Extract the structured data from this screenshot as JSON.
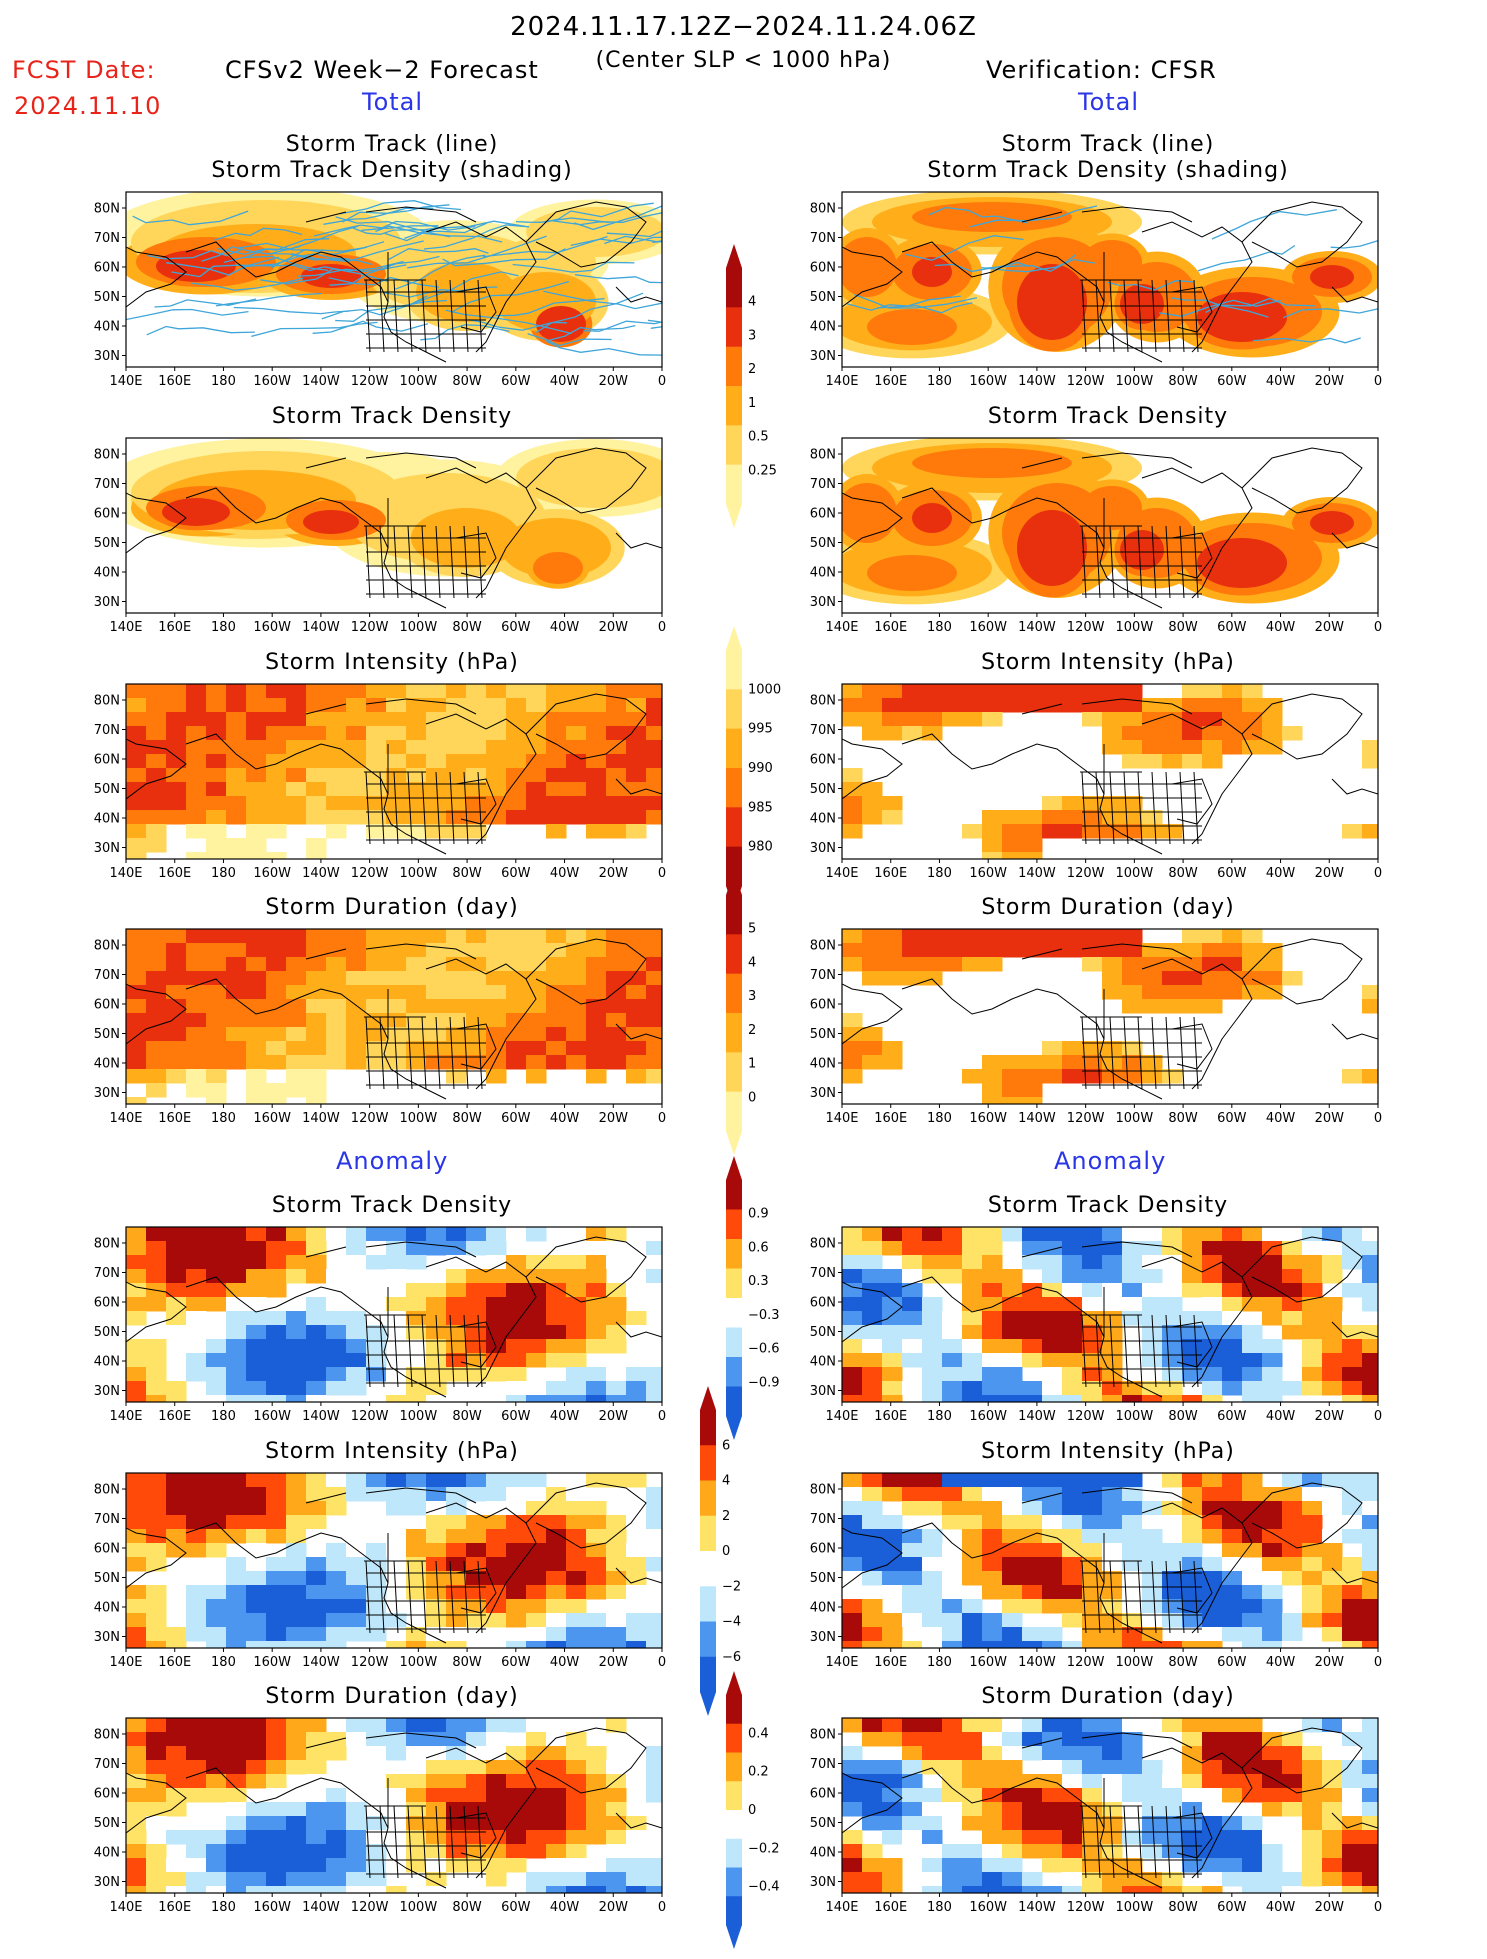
{
  "header": {
    "title": "2024.11.17.12Z−2024.11.24.06Z",
    "subtitle": "(Center SLP < 1000 hPa)",
    "fcst_label": "FCST Date:",
    "fcst_date": "2024.11.10",
    "left_model": "CFSv2 Week−2 Forecast",
    "right_model": "Verification: CFSR"
  },
  "sections": {
    "total_left": "Total",
    "total_right": "Total",
    "anomaly_left": "Anomaly",
    "anomaly_right": "Anomaly"
  },
  "panels": {
    "track_line": "Storm Track (line)",
    "track_shading": "Storm Track Density (shading)",
    "track_density": "Storm Track Density",
    "intensity": "Storm Intensity (hPa)",
    "duration": "Storm Duration (day)"
  },
  "axes": {
    "lon_ticks": [
      "140E",
      "160E",
      "180",
      "160W",
      "140W",
      "120W",
      "100W",
      "80W",
      "60W",
      "40W",
      "20W",
      "0"
    ],
    "lat_ticks": [
      "80N",
      "70N",
      "60N",
      "50N",
      "40N",
      "30N"
    ]
  },
  "colorbars": [
    {
      "id": "density-total",
      "labels": [
        "4",
        "3",
        "2",
        "1",
        "0.5",
        "0.25"
      ]
    },
    {
      "id": "intensity-total",
      "labels": [
        "1000",
        "995",
        "990",
        "985",
        "980"
      ]
    },
    {
      "id": "duration-total",
      "labels": [
        "5",
        "4",
        "3",
        "2",
        "1",
        "0"
      ]
    },
    {
      "id": "density-anom",
      "labels": [
        "0.9",
        "0.6",
        "0.3",
        "−0.3",
        "−0.6",
        "−0.9"
      ]
    },
    {
      "id": "intensity-anom",
      "labels": [
        "6",
        "4",
        "2",
        "0",
        "−2",
        "−4",
        "−6"
      ]
    },
    {
      "id": "duration-anom",
      "labels": [
        "0.4",
        "0.2",
        "0",
        "−0.2",
        "−0.4"
      ]
    }
  ],
  "colors": {
    "total_scale": [
      "#fff3a0",
      "#ffd65a",
      "#ffae1a",
      "#ff7a0a",
      "#e8300e",
      "#a80a0a"
    ],
    "anom_scale": [
      "#1a5fd8",
      "#4d96ef",
      "#bfe7fb",
      "#ffffff",
      "#ffe366",
      "#ffa81a",
      "#ff4a0a",
      "#a80a0a"
    ],
    "track_line": "#3fa6d9",
    "map_lines": "#000000"
  }
}
